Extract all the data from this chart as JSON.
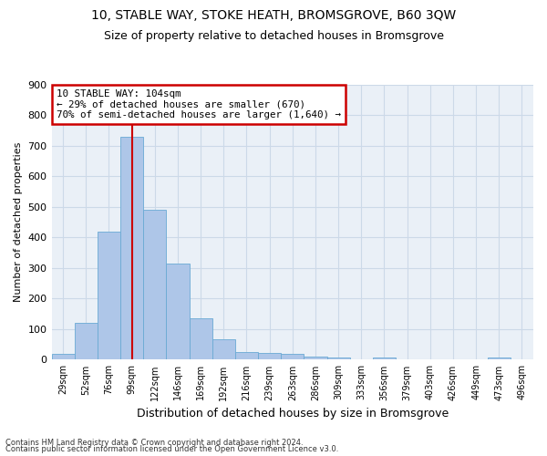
{
  "title1": "10, STABLE WAY, STOKE HEATH, BROMSGROVE, B60 3QW",
  "title2": "Size of property relative to detached houses in Bromsgrove",
  "xlabel": "Distribution of detached houses by size in Bromsgrove",
  "ylabel": "Number of detached properties",
  "categories": [
    "29sqm",
    "52sqm",
    "76sqm",
    "99sqm",
    "122sqm",
    "146sqm",
    "169sqm",
    "192sqm",
    "216sqm",
    "239sqm",
    "263sqm",
    "286sqm",
    "309sqm",
    "333sqm",
    "356sqm",
    "379sqm",
    "403sqm",
    "426sqm",
    "449sqm",
    "473sqm",
    "496sqm"
  ],
  "values": [
    20,
    120,
    420,
    730,
    490,
    315,
    135,
    68,
    25,
    22,
    20,
    10,
    8,
    0,
    7,
    0,
    0,
    0,
    0,
    8,
    0
  ],
  "bar_color": "#aec6e8",
  "bar_edge_color": "#6aaad4",
  "red_line_color": "#cc0000",
  "grid_color": "#ccd9e8",
  "plot_bg_color": "#eaf0f7",
  "footer1": "Contains HM Land Registry data © Crown copyright and database right 2024.",
  "footer2": "Contains public sector information licensed under the Open Government Licence v3.0.",
  "ylim_max": 900,
  "yticks": [
    0,
    100,
    200,
    300,
    400,
    500,
    600,
    700,
    800,
    900
  ],
  "property_size_label": "10 STABLE WAY: 104sqm",
  "annotation_line1": "← 29% of detached houses are smaller (670)",
  "annotation_line2": "70% of semi-detached houses are larger (1,640) →",
  "red_line_index": 3
}
